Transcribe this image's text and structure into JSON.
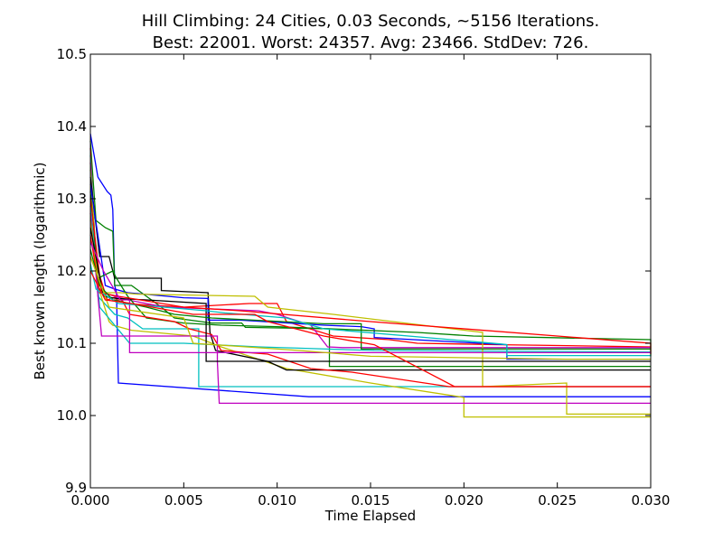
{
  "chart_data": {
    "type": "line",
    "title": "Hill Climbing: 24 Cities, 0.03 Seconds, ~5156 Iterations.",
    "subtitle": "Best: 22001. Worst: 24357. Avg: 23466. StdDev: 726.",
    "xlabel": "Time Elapsed",
    "ylabel": "Best known length (logarithmic)",
    "xlim": [
      0.0,
      0.03
    ],
    "ylim": [
      9.9,
      10.5
    ],
    "xticks": [
      "0.000",
      "0.005",
      "0.010",
      "0.015",
      "0.020",
      "0.025",
      "0.030"
    ],
    "yticks": [
      "9.9",
      "10.0",
      "10.1",
      "10.2",
      "10.3",
      "10.4",
      "10.5"
    ],
    "grid": false,
    "legend": "none",
    "series": [
      {
        "color": "#0000ff",
        "points": [
          [
            0,
            10.39
          ],
          [
            0.0004,
            10.33
          ],
          [
            0.0009,
            10.31
          ],
          [
            0.0011,
            10.305
          ],
          [
            0.0012,
            10.285
          ],
          [
            0.0013,
            10.18
          ],
          [
            0.0014,
            10.17
          ],
          [
            0.0015,
            10.045
          ],
          [
            0.0117,
            10.026
          ],
          [
            0.03,
            10.026
          ]
        ]
      },
      {
        "color": "#008000",
        "points": [
          [
            0,
            10.38
          ],
          [
            0.0003,
            10.27
          ],
          [
            0.0008,
            10.26
          ],
          [
            0.0012,
            10.255
          ],
          [
            0.0013,
            10.18
          ],
          [
            0.0022,
            10.18
          ],
          [
            0.0038,
            10.15
          ],
          [
            0.0045,
            10.135
          ],
          [
            0.0065,
            10.128
          ],
          [
            0.0081,
            10.128
          ],
          [
            0.0083,
            10.122
          ],
          [
            0.0128,
            10.12
          ],
          [
            0.0128,
            10.068
          ],
          [
            0.03,
            10.068
          ]
        ]
      },
      {
        "color": "#ff0000",
        "points": [
          [
            0,
            10.37
          ],
          [
            0.0003,
            10.21
          ],
          [
            0.0009,
            10.16
          ],
          [
            0.0015,
            10.165
          ],
          [
            0.0018,
            10.155
          ],
          [
            0.005,
            10.15
          ],
          [
            0.0085,
            10.155
          ],
          [
            0.01,
            10.155
          ],
          [
            0.0105,
            10.13
          ],
          [
            0.013,
            10.11
          ],
          [
            0.016,
            10.105
          ],
          [
            0.0175,
            10.1
          ],
          [
            0.022,
            10.098
          ],
          [
            0.03,
            10.095
          ]
        ]
      },
      {
        "color": "#00bfbf",
        "points": [
          [
            0,
            10.36
          ],
          [
            0.0004,
            10.165
          ],
          [
            0.0013,
            10.14
          ],
          [
            0.002,
            10.135
          ],
          [
            0.0028,
            10.12
          ],
          [
            0.005,
            10.12
          ],
          [
            0.0058,
            10.12
          ],
          [
            0.0058,
            10.04
          ],
          [
            0.0125,
            10.04
          ],
          [
            0.0195,
            10.04
          ],
          [
            0.03,
            10.04
          ]
        ]
      },
      {
        "color": "#bf00bf",
        "points": [
          [
            0,
            10.35
          ],
          [
            0.0003,
            10.2
          ],
          [
            0.0007,
            10.17
          ],
          [
            0.0013,
            10.165
          ],
          [
            0.002,
            10.16
          ],
          [
            0.004,
            10.15
          ],
          [
            0.006,
            10.148
          ],
          [
            0.009,
            10.145
          ],
          [
            0.01,
            10.14
          ],
          [
            0.0118,
            10.125
          ],
          [
            0.0127,
            10.095
          ],
          [
            0.0135,
            10.094
          ],
          [
            0.03,
            10.094
          ]
        ]
      },
      {
        "color": "#bfbf00",
        "points": [
          [
            0,
            10.34
          ],
          [
            0.0004,
            10.18
          ],
          [
            0.001,
            10.13
          ],
          [
            0.0012,
            10.125
          ],
          [
            0.0022,
            10.118
          ],
          [
            0.0055,
            10.11
          ],
          [
            0.007,
            10.095
          ],
          [
            0.0105,
            10.065
          ],
          [
            0.015,
            10.045
          ],
          [
            0.02,
            10.025
          ],
          [
            0.02,
            9.998
          ],
          [
            0.03,
            9.998
          ]
        ]
      },
      {
        "color": "#000000",
        "points": [
          [
            0,
            10.33
          ],
          [
            0.0005,
            10.22
          ],
          [
            0.001,
            10.22
          ],
          [
            0.0012,
            10.2
          ],
          [
            0.0013,
            10.19
          ],
          [
            0.0038,
            10.19
          ],
          [
            0.0038,
            10.173
          ],
          [
            0.0063,
            10.17
          ],
          [
            0.0064,
            10.115
          ],
          [
            0.0067,
            10.09
          ],
          [
            0.0095,
            10.075
          ],
          [
            0.0105,
            10.063
          ],
          [
            0.03,
            10.063
          ]
        ]
      },
      {
        "color": "#0000ff",
        "points": [
          [
            0,
            10.32
          ],
          [
            0.0008,
            10.18
          ],
          [
            0.0013,
            10.175
          ],
          [
            0.002,
            10.17
          ],
          [
            0.005,
            10.163
          ],
          [
            0.0063,
            10.162
          ],
          [
            0.0063,
            10.132
          ],
          [
            0.008,
            10.132
          ],
          [
            0.0125,
            10.125
          ],
          [
            0.0145,
            10.123
          ],
          [
            0.0152,
            10.12
          ],
          [
            0.0152,
            10.108
          ],
          [
            0.0223,
            10.098
          ],
          [
            0.0223,
            10.078
          ],
          [
            0.03,
            10.078
          ]
        ]
      },
      {
        "color": "#008000",
        "points": [
          [
            0,
            10.31
          ],
          [
            0.0004,
            10.19
          ],
          [
            0.0012,
            10.2
          ],
          [
            0.0014,
            10.19
          ],
          [
            0.002,
            10.165
          ],
          [
            0.003,
            10.135
          ],
          [
            0.005,
            10.128
          ],
          [
            0.007,
            10.125
          ],
          [
            0.01,
            10.123
          ],
          [
            0.0175,
            10.115
          ],
          [
            0.0205,
            10.11
          ],
          [
            0.03,
            10.105
          ],
          [
            0.03,
            10.082
          ]
        ]
      },
      {
        "color": "#ff0000",
        "points": [
          [
            0,
            10.3
          ],
          [
            0.0006,
            10.17
          ],
          [
            0.0012,
            10.16
          ],
          [
            0.0017,
            10.16
          ],
          [
            0.0021,
            10.14
          ],
          [
            0.0045,
            10.13
          ],
          [
            0.0053,
            10.12
          ],
          [
            0.0065,
            10.112
          ],
          [
            0.007,
            10.09
          ],
          [
            0.0095,
            10.085
          ],
          [
            0.0118,
            10.065
          ],
          [
            0.014,
            10.06
          ],
          [
            0.0192,
            10.04
          ],
          [
            0.03,
            10.04
          ]
        ]
      },
      {
        "color": "#00bfbf",
        "points": [
          [
            0,
            10.29
          ],
          [
            0.0005,
            10.15
          ],
          [
            0.0021,
            10.1
          ],
          [
            0.005,
            10.1
          ],
          [
            0.009,
            10.095
          ],
          [
            0.0152,
            10.09
          ],
          [
            0.03,
            10.088
          ]
        ]
      },
      {
        "color": "#bf00bf",
        "points": [
          [
            0,
            10.28
          ],
          [
            0.0006,
            10.11
          ],
          [
            0.002,
            10.11
          ],
          [
            0.0068,
            10.11
          ],
          [
            0.0068,
            10.075
          ],
          [
            0.0069,
            10.017
          ],
          [
            0.03,
            10.017
          ]
        ]
      },
      {
        "color": "#bfbf00",
        "points": [
          [
            0,
            10.27
          ],
          [
            0.0005,
            10.17
          ],
          [
            0.0016,
            10.17
          ],
          [
            0.0025,
            10.168
          ],
          [
            0.0088,
            10.165
          ],
          [
            0.0095,
            10.15
          ],
          [
            0.013,
            10.14
          ],
          [
            0.021,
            10.115
          ],
          [
            0.021,
            10.04
          ],
          [
            0.0255,
            10.045
          ],
          [
            0.0255,
            10.002
          ],
          [
            0.03,
            10.002
          ]
        ]
      },
      {
        "color": "#000000",
        "points": [
          [
            0,
            10.26
          ],
          [
            0.0007,
            10.165
          ],
          [
            0.0014,
            10.162
          ],
          [
            0.003,
            10.16
          ],
          [
            0.0062,
            10.155
          ],
          [
            0.0062,
            10.075
          ],
          [
            0.03,
            10.075
          ]
        ]
      },
      {
        "color": "#ff0000",
        "points": [
          [
            0,
            10.25
          ],
          [
            0.0005,
            10.17
          ],
          [
            0.0015,
            10.165
          ],
          [
            0.005,
            10.15
          ],
          [
            0.008,
            10.145
          ],
          [
            0.015,
            10.13
          ],
          [
            0.03,
            10.1
          ],
          [
            0.03,
            10.085
          ]
        ]
      },
      {
        "color": "#bf00bf",
        "points": [
          [
            0,
            10.24
          ],
          [
            0.0007,
            10.2
          ],
          [
            0.0016,
            10.16
          ],
          [
            0.0021,
            10.16
          ],
          [
            0.0021,
            10.087
          ],
          [
            0.005,
            10.087
          ],
          [
            0.03,
            10.087
          ]
        ]
      },
      {
        "color": "#008000",
        "points": [
          [
            0,
            10.23
          ],
          [
            0.0005,
            10.18
          ],
          [
            0.0012,
            10.16
          ],
          [
            0.003,
            10.15
          ],
          [
            0.0045,
            10.14
          ],
          [
            0.0065,
            10.135
          ],
          [
            0.0125,
            10.127
          ],
          [
            0.0145,
            10.127
          ],
          [
            0.0145,
            10.092
          ],
          [
            0.03,
            10.092
          ]
        ]
      },
      {
        "color": "#bfbf00",
        "points": [
          [
            0,
            10.22
          ],
          [
            0.001,
            10.15
          ],
          [
            0.005,
            10.135
          ],
          [
            0.0055,
            10.1
          ],
          [
            0.0112,
            10.09
          ],
          [
            0.015,
            10.082
          ],
          [
            0.0255,
            10.078
          ],
          [
            0.03,
            10.078
          ]
        ]
      },
      {
        "color": "#00bfbf",
        "points": [
          [
            0,
            10.21
          ],
          [
            0.0003,
            10.175
          ],
          [
            0.0015,
            10.155
          ],
          [
            0.003,
            10.152
          ],
          [
            0.0062,
            10.145
          ],
          [
            0.0072,
            10.142
          ],
          [
            0.0105,
            10.135
          ],
          [
            0.0125,
            10.12
          ],
          [
            0.022,
            10.099
          ],
          [
            0.0223,
            10.098
          ],
          [
            0.0223,
            10.083
          ],
          [
            0.03,
            10.083
          ]
        ]
      },
      {
        "color": "#ff0000",
        "points": [
          [
            0,
            10.2
          ],
          [
            0.0008,
            10.16
          ],
          [
            0.0022,
            10.155
          ],
          [
            0.0055,
            10.14
          ],
          [
            0.0088,
            10.14
          ],
          [
            0.0095,
            10.13
          ],
          [
            0.0125,
            10.11
          ],
          [
            0.0152,
            10.098
          ],
          [
            0.0195,
            10.04
          ],
          [
            0.03,
            10.04
          ]
        ]
      }
    ]
  }
}
